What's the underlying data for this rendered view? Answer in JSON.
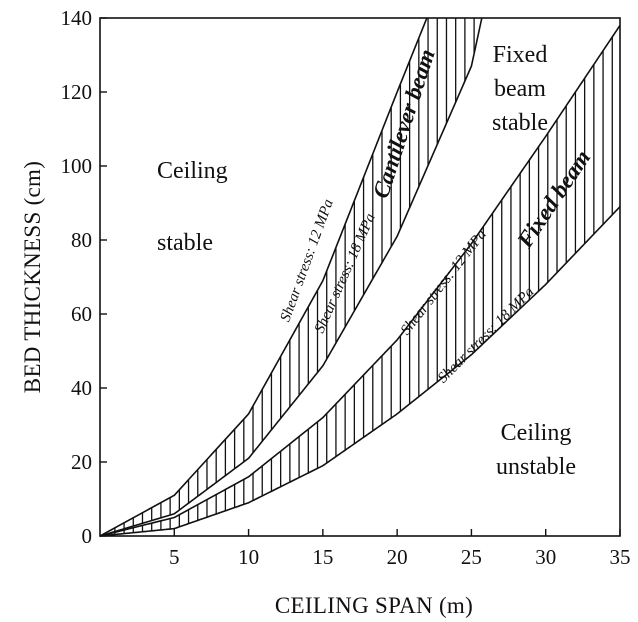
{
  "chart_data": {
    "type": "line",
    "xlabel": "CEILING SPAN  (m)",
    "ylabel": "BED THICKNESS  (cm)",
    "xlim": [
      0,
      35
    ],
    "ylim": [
      0,
      140
    ],
    "xticks": [
      5,
      10,
      15,
      20,
      25,
      30,
      35
    ],
    "yticks": [
      0,
      20,
      40,
      60,
      80,
      100,
      120,
      140
    ],
    "grid": false,
    "series": [
      {
        "key": "cantilever_12",
        "beam": "cantilever",
        "x": [
          0,
          5,
          10,
          15,
          20,
          22
        ],
        "y": [
          0,
          11,
          33,
          69,
          120,
          140
        ]
      },
      {
        "key": "cantilever_18",
        "beam": "cantilever",
        "x": [
          0,
          5,
          10,
          15,
          20,
          25,
          25.7
        ],
        "y": [
          0,
          6,
          21,
          46,
          81,
          127,
          140
        ]
      },
      {
        "key": "fixed_12",
        "beam": "fixed",
        "x": [
          0,
          5,
          10,
          15,
          20,
          25,
          30,
          35
        ],
        "y": [
          0,
          5,
          16,
          32,
          53,
          79,
          108,
          138
        ]
      },
      {
        "key": "fixed_18",
        "beam": "fixed",
        "x": [
          0,
          5,
          10,
          15,
          20,
          25,
          30,
          35
        ],
        "y": [
          0,
          2,
          9,
          19,
          33,
          49,
          68,
          89
        ]
      }
    ],
    "annotations": {
      "ceiling_stable_1": "Ceiling",
      "ceiling_stable_2": "stable",
      "fixed_beam_stable_1": "Fixed",
      "fixed_beam_stable_2": "beam",
      "fixed_beam_stable_3": "stable",
      "ceiling_unstable_1": "Ceiling",
      "ceiling_unstable_2": "unstable",
      "cantilever_beam": "Cantilever beam",
      "fixed_beam": "Fixed beam",
      "cant_stress_12": "Shear stress: 12 MPa",
      "cant_stress_18": "Shear stress: 18 MPa",
      "fixed_stress_12": "Shear stress: 12 MPa",
      "fixed_stress_18": "Shear stress: 18 MPa"
    }
  }
}
